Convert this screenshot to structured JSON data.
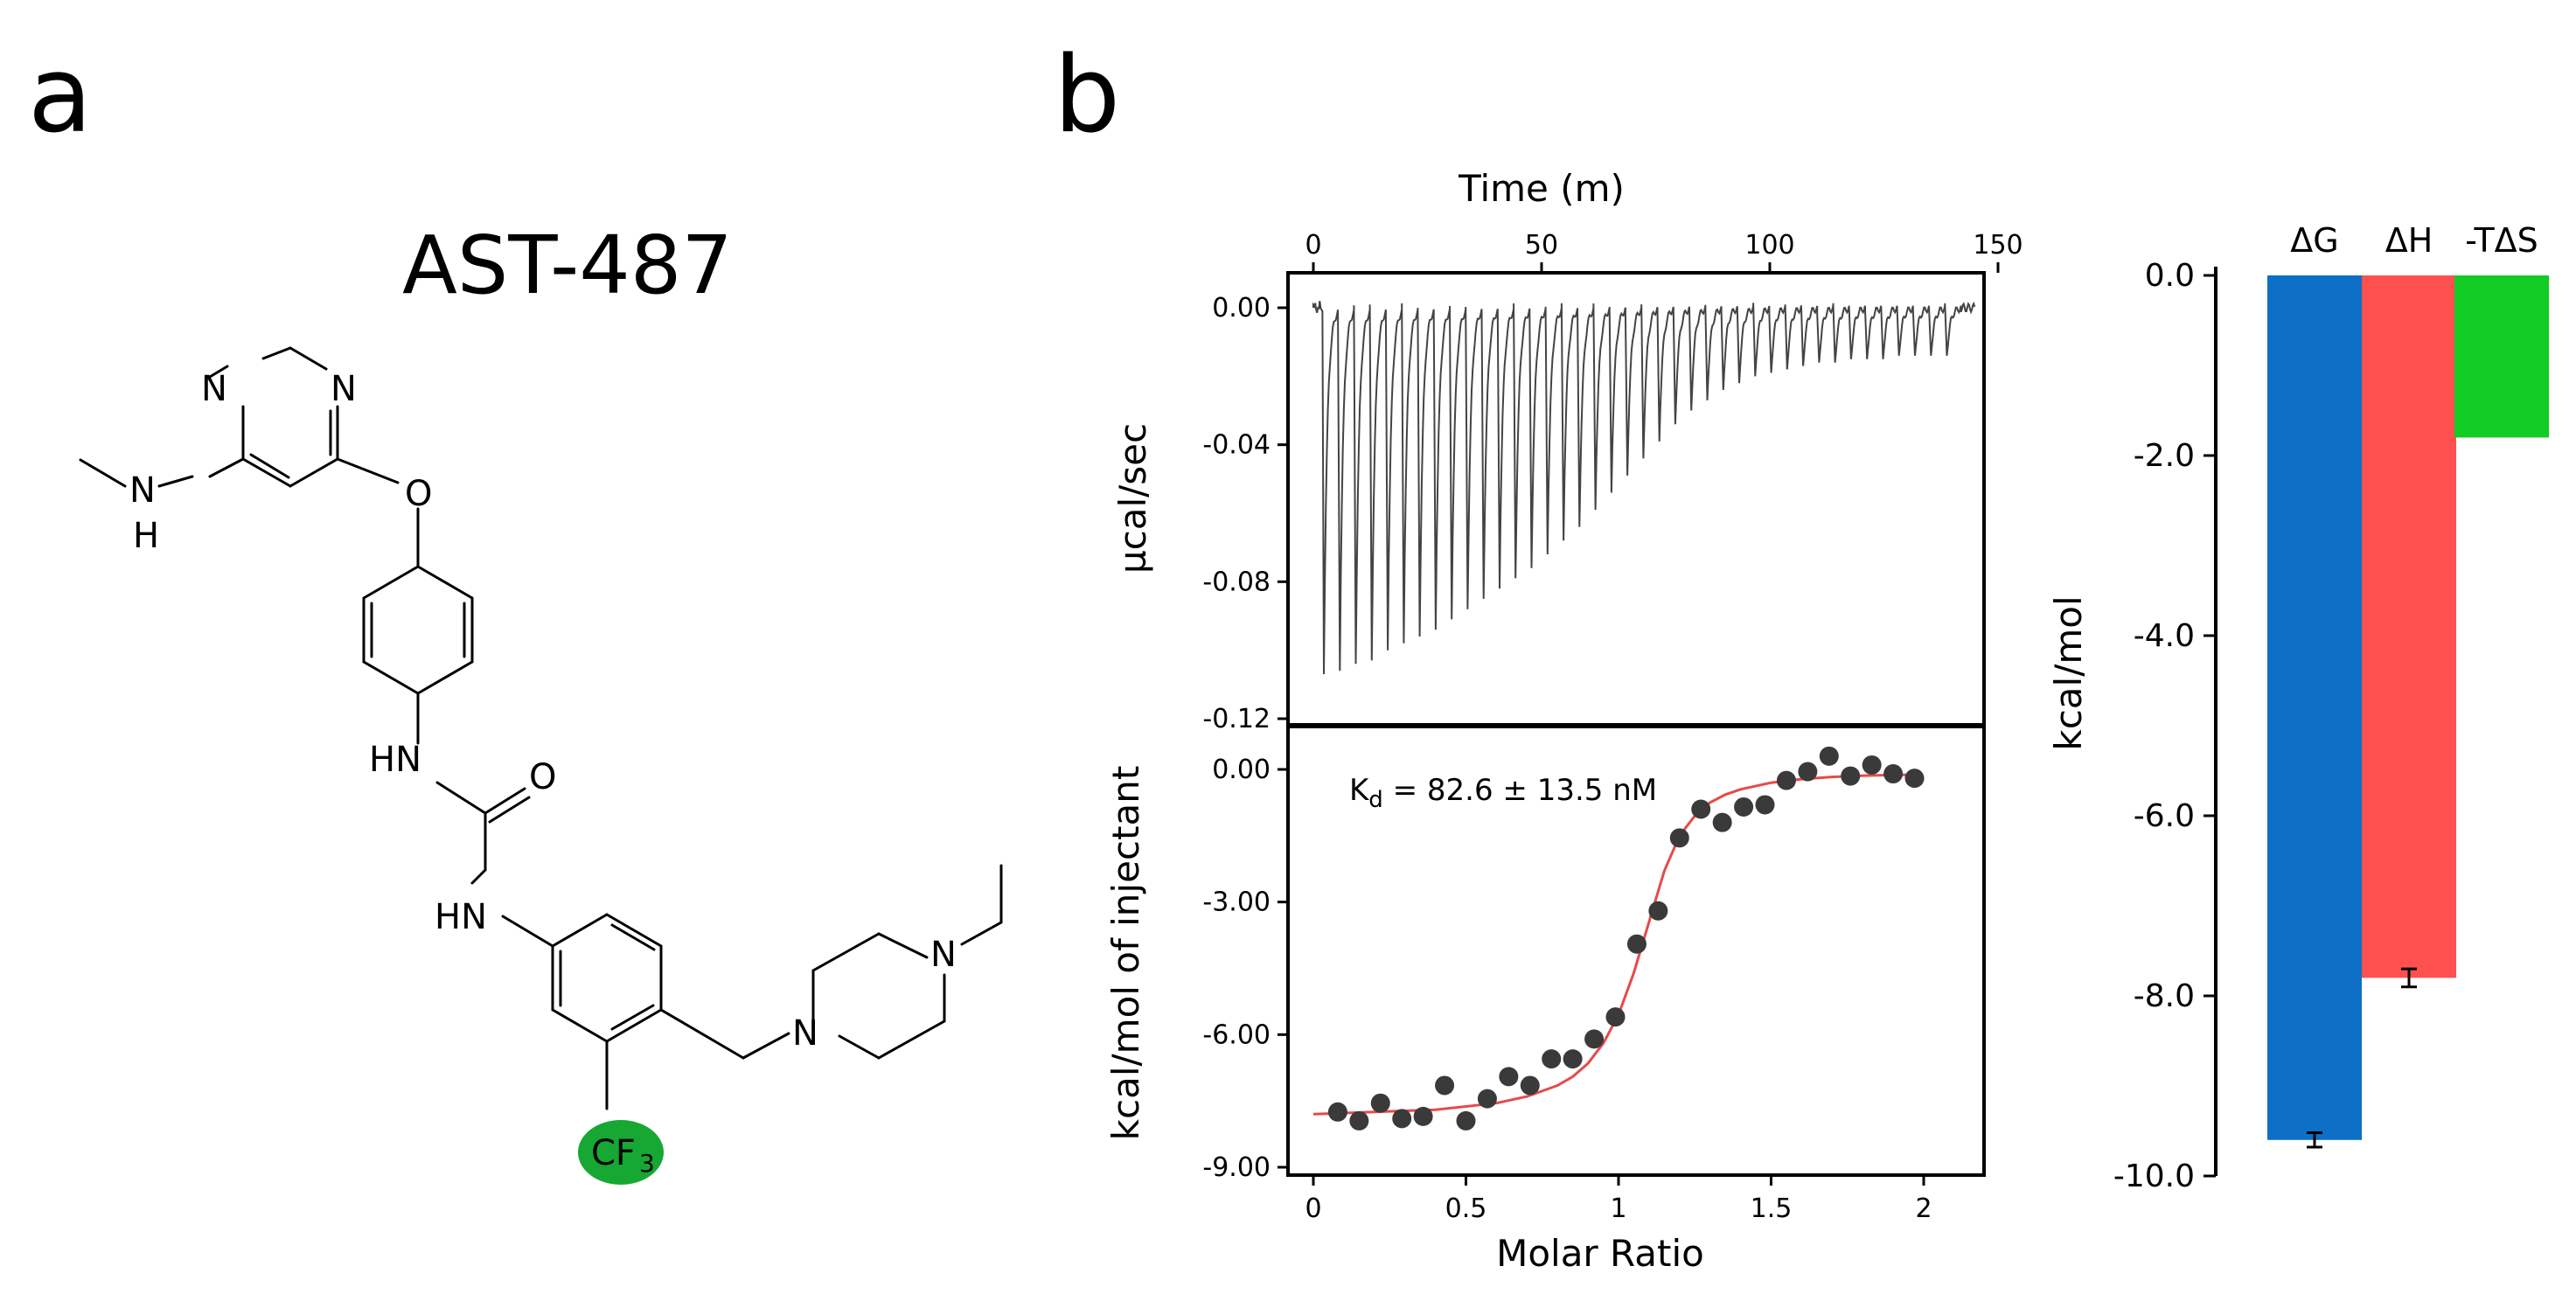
{
  "panels": {
    "a": "a",
    "b": "b"
  },
  "molecule": {
    "name": "AST-487",
    "atoms": {
      "N": "N",
      "H": "H",
      "O": "O",
      "HN": "HN",
      "CF": "CF",
      "sub3": "3"
    },
    "highlight_color": "#16a832"
  },
  "chart_data": [
    {
      "id": "itc-raw",
      "type": "line",
      "title": "Time (m)",
      "xlabel": "Time (m)",
      "ylabel": "µcal/sec",
      "xlim": [
        0,
        150
      ],
      "ylim": [
        -0.12,
        0.005
      ],
      "xticks": [
        "0",
        "50",
        "100",
        "150"
      ],
      "yticks": [
        "0.00",
        "-0.04",
        "-0.08",
        "-0.12"
      ],
      "injections": 40,
      "peak_minima": [
        -0.107,
        -0.106,
        -0.104,
        -0.103,
        -0.1,
        -0.098,
        -0.096,
        -0.094,
        -0.091,
        -0.088,
        -0.085,
        -0.082,
        -0.079,
        -0.076,
        -0.072,
        -0.068,
        -0.064,
        -0.059,
        -0.054,
        -0.049,
        -0.044,
        -0.039,
        -0.034,
        -0.03,
        -0.027,
        -0.024,
        -0.022,
        -0.02,
        -0.019,
        -0.018,
        -0.017,
        -0.016,
        -0.016,
        -0.015,
        -0.015,
        -0.015,
        -0.014,
        -0.014,
        -0.014,
        -0.014
      ],
      "color": "#444444"
    },
    {
      "id": "itc-binding",
      "type": "scatter",
      "xlabel": "Molar Ratio",
      "ylabel": "kcal/mol of injectant",
      "xlim": [
        -0.1,
        2.15
      ],
      "ylim": [
        -9.0,
        0.8
      ],
      "xticks": [
        "0",
        "0.5",
        "1",
        "1.5",
        "2"
      ],
      "yticks": [
        "0.00",
        "-3.00",
        "-6.00",
        "-9.00"
      ],
      "annotation": {
        "K": "K",
        "sub": "d",
        "text": " = 82.6 ± 13.5 nM"
      },
      "points": {
        "x": [
          0.08,
          0.15,
          0.22,
          0.29,
          0.36,
          0.43,
          0.5,
          0.57,
          0.64,
          0.71,
          0.78,
          0.85,
          0.92,
          0.99,
          1.06,
          1.13,
          1.2,
          1.27,
          1.34,
          1.41,
          1.48,
          1.55,
          1.62,
          1.69,
          1.76,
          1.83,
          1.9,
          1.97
        ],
        "y": [
          -7.75,
          -7.95,
          -7.55,
          -7.9,
          -7.85,
          -7.15,
          -7.95,
          -7.45,
          -6.95,
          -7.15,
          -6.55,
          -6.55,
          -6.1,
          -5.6,
          -3.95,
          -3.2,
          -1.55,
          -0.9,
          -1.2,
          -0.85,
          -0.8,
          -0.25,
          -0.05,
          0.3,
          -0.15,
          0.1,
          -0.1,
          -0.2
        ]
      },
      "fit": {
        "x": [
          0,
          0.2,
          0.4,
          0.6,
          0.7,
          0.8,
          0.85,
          0.9,
          0.95,
          1.0,
          1.05,
          1.1,
          1.15,
          1.2,
          1.25,
          1.3,
          1.35,
          1.4,
          1.5,
          1.6,
          1.7,
          1.8,
          1.95
        ],
        "y": [
          -7.8,
          -7.75,
          -7.7,
          -7.55,
          -7.4,
          -7.15,
          -6.95,
          -6.65,
          -6.2,
          -5.55,
          -4.6,
          -3.45,
          -2.3,
          -1.5,
          -1.05,
          -0.75,
          -0.57,
          -0.45,
          -0.3,
          -0.22,
          -0.17,
          -0.14,
          -0.12
        ]
      },
      "point_color": "#3a3a3a",
      "fit_color": "#e64a4a"
    },
    {
      "id": "thermo",
      "type": "bar",
      "categories": [
        "ΔG",
        "ΔH",
        "-TΔS"
      ],
      "values": [
        -9.6,
        -7.8,
        -1.8
      ],
      "errors": [
        0.08,
        0.1,
        0
      ],
      "colors": [
        "#0d6fc6",
        "#ff5050",
        "#11cc22"
      ],
      "ylabel": "kcal/mol",
      "ylim": [
        -10.0,
        0.0
      ],
      "yticks": [
        "0.0",
        "-2.0",
        "-4.0",
        "-6.0",
        "-8.0",
        "-10.0"
      ]
    }
  ]
}
